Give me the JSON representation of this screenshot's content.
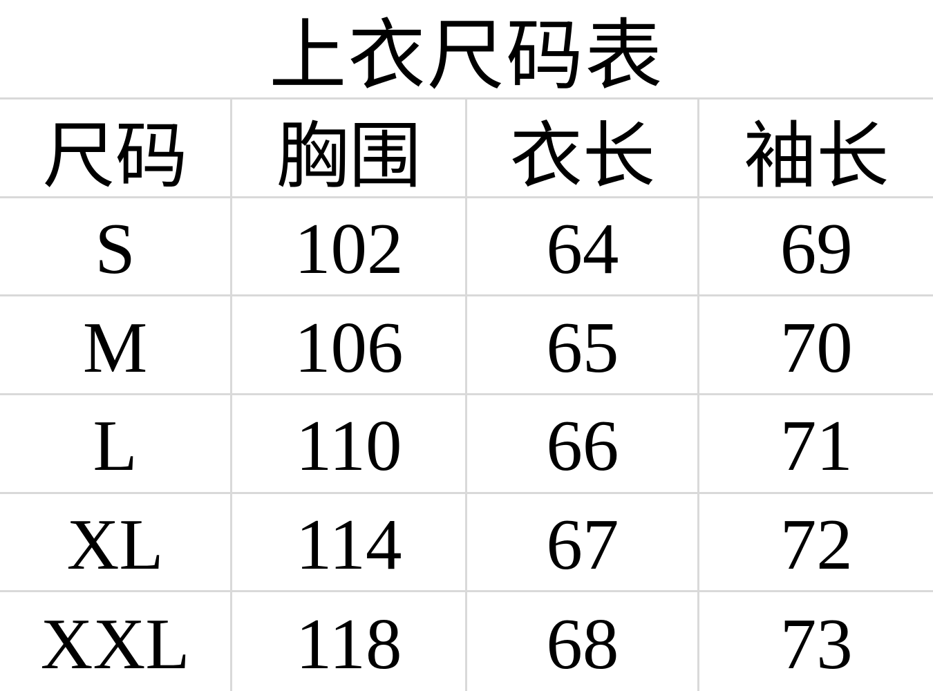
{
  "title": "上衣尺码表",
  "table": {
    "headers": [
      "尺码",
      "胸围",
      "衣长",
      "袖长"
    ],
    "rows": [
      [
        "S",
        "102",
        "64",
        "69"
      ],
      [
        "M",
        "106",
        "65",
        "70"
      ],
      [
        "L",
        "110",
        "66",
        "71"
      ],
      [
        "XL",
        "114",
        "67",
        "72"
      ],
      [
        "XXL",
        "118",
        "68",
        "73"
      ]
    ]
  },
  "chart_data": {
    "type": "table",
    "title": "上衣尺码表",
    "columns": [
      "尺码",
      "胸围",
      "衣长",
      "袖长"
    ],
    "rows": [
      {
        "尺码": "S",
        "胸围": 102,
        "衣长": 64,
        "袖长": 69
      },
      {
        "尺码": "M",
        "胸围": 106,
        "衣长": 65,
        "袖长": 70
      },
      {
        "尺码": "L",
        "胸围": 110,
        "衣长": 66,
        "袖长": 71
      },
      {
        "尺码": "XL",
        "胸围": 114,
        "衣长": 67,
        "袖长": 72
      },
      {
        "尺码": "XXL",
        "胸围": 118,
        "衣长": 68,
        "袖长": 73
      }
    ]
  },
  "colors": {
    "gridline": "#d9d9d9",
    "text": "#000000",
    "background": "#ffffff"
  }
}
